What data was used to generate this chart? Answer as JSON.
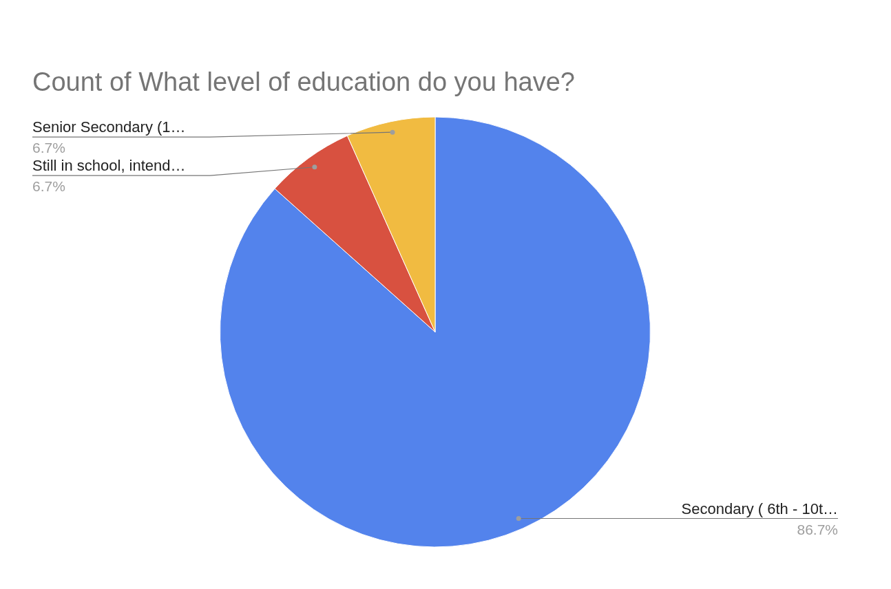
{
  "chart_data": {
    "type": "pie",
    "title": "Count of What level of education do you have?",
    "categories": [
      "Secondary ( 6th - 10t…",
      "Still in school, intend…",
      "Senior Secondary (1…"
    ],
    "values": [
      86.7,
      6.7,
      6.7
    ],
    "colors": [
      "#5383ec",
      "#d85140",
      "#f1bb41"
    ],
    "value_labels": [
      "86.7%",
      "6.7%",
      "6.7%"
    ]
  }
}
